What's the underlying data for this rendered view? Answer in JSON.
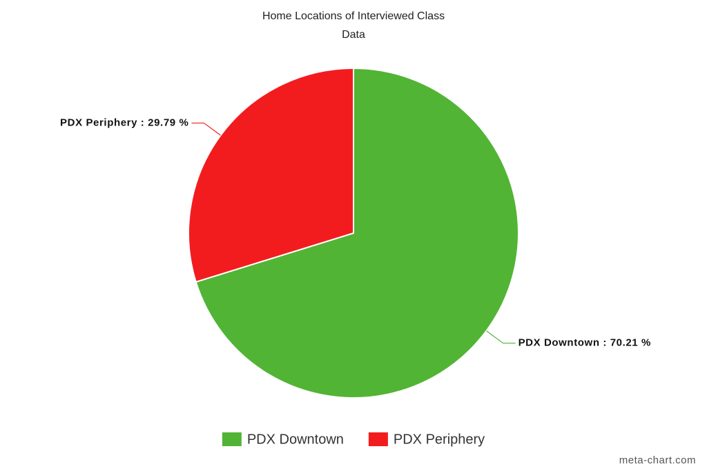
{
  "chart_data": {
    "type": "pie",
    "title": "Home Locations of Interviewed Class Data",
    "categories": [
      "PDX Downtown",
      "PDX Periphery"
    ],
    "values": [
      70.21,
      29.79
    ],
    "value_labels": [
      "PDX Downtown : 70.21 %",
      "PDX Periphery : 29.79 %"
    ],
    "colors": [
      "#52b435",
      "#f21c1f"
    ],
    "legend": "bottom",
    "credit": "meta-chart.com"
  }
}
